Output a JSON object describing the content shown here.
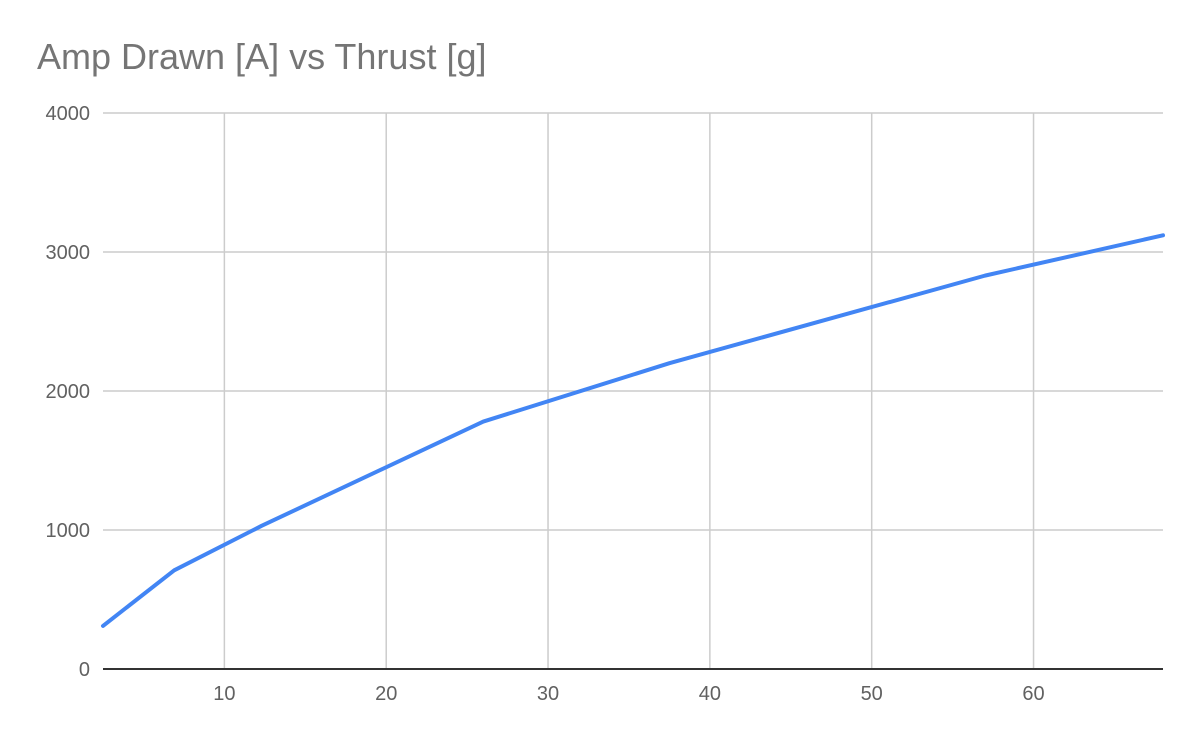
{
  "chart_data": {
    "type": "line",
    "title": "Amp Drawn [A] vs Thrust [g]",
    "xlabel": "",
    "ylabel": "",
    "xlim": [
      2.5,
      68
    ],
    "ylim": [
      0,
      4000
    ],
    "x_ticks": [
      10,
      20,
      30,
      40,
      50,
      60
    ],
    "y_ticks": [
      0,
      1000,
      2000,
      3000,
      4000
    ],
    "grid": true,
    "legend": "none",
    "series": [
      {
        "color": "#4285f4",
        "points": [
          {
            "x": 2.5,
            "y": 310
          },
          {
            "x": 6.9,
            "y": 710
          },
          {
            "x": 12.3,
            "y": 1030
          },
          {
            "x": 26.0,
            "y": 1780
          },
          {
            "x": 37.5,
            "y": 2200
          },
          {
            "x": 57.0,
            "y": 2830
          },
          {
            "x": 68.0,
            "y": 3120
          }
        ]
      }
    ]
  }
}
